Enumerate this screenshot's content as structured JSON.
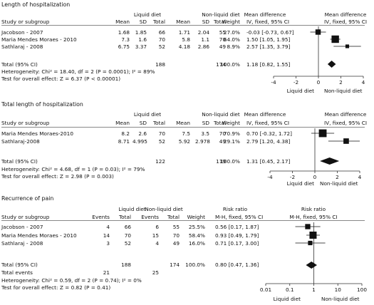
{
  "chart_data": [
    {
      "type": "forest",
      "title": "Length of hospitalization",
      "header": {
        "study": "Study or subgroup",
        "group1": "Liquid diet",
        "group2": "Non-liquid diet",
        "mean": "Mean",
        "sd": "SD",
        "total": "Total",
        "weight": "Weight",
        "effect_label": "Mean difference",
        "effect_method": "IV, fixed, 95% CI"
      },
      "studies": [
        {
          "name": "Jacobson - 2007",
          "m1": "1.68",
          "sd1": "1.85",
          "n1": "66",
          "m2": "1.71",
          "sd2": "2.04",
          "n2": "55",
          "weight": "27.0%",
          "ci_text": "-0.03 [-0.73, 0.67]",
          "est": -0.03,
          "lo": -0.73,
          "hi": 0.67,
          "w": 27.0
        },
        {
          "name": "Maria Mendes Moraes - 2010",
          "m1": "7.3",
          "sd1": "1.6",
          "n1": "70",
          "m2": "5.8",
          "sd2": "1.1",
          "n2": "70",
          "weight": "64.0%",
          "ci_text": "1.50 [1.05, 1.95]",
          "est": 1.5,
          "lo": 1.05,
          "hi": 1.95,
          "w": 64.0
        },
        {
          "name": "Sathlaraj - 2008",
          "m1": "6.75",
          "sd1": "3.37",
          "n1": "52",
          "m2": "4.18",
          "sd2": "2.86",
          "n2": "49",
          "weight": "8.9%",
          "ci_text": "2.57 [1.35, 3.79]",
          "est": 2.57,
          "lo": 1.35,
          "hi": 3.79,
          "w": 8.9
        }
      ],
      "total": {
        "label": "Total (95% CI)",
        "n1": "188",
        "n2": "174",
        "weight": "100.0%",
        "ci_text": "1.18 [0.82, 1.55]",
        "est": 1.18,
        "lo": 0.82,
        "hi": 1.55
      },
      "heterogeneity": "Heterogeneity: Chi² = 18.40, df = 2 (P = 0.0001); I² = 89%",
      "overall": "Test for overall effect: Z = 6.37 (P < 0.00001)",
      "axis": {
        "scale": "linear",
        "min": -4,
        "max": 4,
        "ticks": [
          "-4",
          "-2",
          "0",
          "2",
          "4"
        ],
        "tick_values": [
          -4,
          -2,
          0,
          2,
          4
        ]
      },
      "favours_left": "Liquid diet",
      "favours_right": "Non-liquid diet"
    },
    {
      "type": "forest",
      "title": "Total length of hospitalization",
      "header": {
        "study": "Study or subgroup",
        "group1": "Liquid diet",
        "group2": "Non-liquid diet",
        "mean": "Mean",
        "sd": "SD",
        "total": "Total",
        "weight": "Weight",
        "effect_label": "Mean difference",
        "effect_method": "IV, fixed, 95% CI"
      },
      "studies": [
        {
          "name": "Maria Mendes Moraes-2010",
          "m1": "8.2",
          "sd1": "2.6",
          "n1": "70",
          "m2": "7.5",
          "sd2": "3.5",
          "n2": "70",
          "weight": "70.9%",
          "ci_text": "0.70 [-0.32, 1.72]",
          "est": 0.7,
          "lo": -0.32,
          "hi": 1.72,
          "w": 70.9
        },
        {
          "name": "Sathlaraj-2008",
          "m1": "8.71",
          "sd1": "4.995",
          "n1": "52",
          "m2": "5.92",
          "sd2": "2.978",
          "n2": "49",
          "weight": "29.1%",
          "ci_text": "2.79 [1.20, 4.38]",
          "est": 2.79,
          "lo": 1.2,
          "hi": 4.38,
          "w": 29.1
        }
      ],
      "total": {
        "label": "Total (95% CI)",
        "n1": "122",
        "n2": "119",
        "weight": "100.0%",
        "ci_text": "1.31 [0.45, 2.17]",
        "est": 1.31,
        "lo": 0.45,
        "hi": 2.17
      },
      "heterogeneity": "Heterogeneity: Chi² = 4.68, df = 1 (P = 0.03); I² = 79%",
      "overall": "Test for overall effect: Z = 2.98 (P = 0.003)",
      "axis": {
        "scale": "linear",
        "min": -4,
        "max": 4,
        "ticks": [
          "-4",
          "-2",
          "0",
          "2",
          "4"
        ],
        "tick_values": [
          -4,
          -2,
          0,
          2,
          4
        ]
      },
      "favours_left": "Liquid diet",
      "favours_right": "Non-liquid diet"
    },
    {
      "type": "forest",
      "title": "Recurrence of pain",
      "header": {
        "study": "Study or subgroup",
        "group1": "Liquid diet",
        "group2": "Non-liquid diet",
        "events": "Events",
        "total": "Total",
        "weight": "Weight",
        "effect_label": "Risk ratio",
        "effect_method": "M-H, fixed, 95% CI"
      },
      "studies": [
        {
          "name": "Jacobson - 2007",
          "e1": "4",
          "n1": "66",
          "e2": "6",
          "n2": "55",
          "weight": "25.5%",
          "ci_text": "0.56 [0.17, 1.87]",
          "est": 0.56,
          "lo": 0.17,
          "hi": 1.87,
          "w": 25.5
        },
        {
          "name": "Maria Mendes Moraes - 2010",
          "e1": "14",
          "n1": "70",
          "e2": "15",
          "n2": "70",
          "weight": "58.4%",
          "ci_text": "0.93 [0.49, 1.79]",
          "est": 0.93,
          "lo": 0.49,
          "hi": 1.79,
          "w": 58.4
        },
        {
          "name": "Sathlaraj - 2008",
          "e1": "3",
          "n1": "52",
          "e2": "4",
          "n2": "49",
          "weight": "16.0%",
          "ci_text": "0.71 [0.17, 3.00]",
          "est": 0.71,
          "lo": 0.17,
          "hi": 3.0,
          "w": 16.0
        }
      ],
      "total": {
        "label": "Total (95% CI)",
        "n1": "188",
        "n2": "174",
        "weight": "100.0%",
        "ci_text": "0.80 [0.47, 1.36]",
        "est": 0.8,
        "lo": 0.47,
        "hi": 1.36
      },
      "total_events": {
        "label": "Total events",
        "e1": "21",
        "e2": "25"
      },
      "heterogeneity": "Heterogeneity: Chi² = 0.59, df = 2 (P = 0.74); I² = 0%",
      "overall": "Test for overall effect: Z = 0.82 (P = 0.41)",
      "axis": {
        "scale": "log",
        "min": 0.01,
        "max": 100,
        "ticks": [
          "0.01",
          "0.1",
          "1",
          "10",
          "100"
        ],
        "tick_values": [
          0.01,
          0.1,
          1,
          10,
          100
        ]
      },
      "favours_left": "Liquid diet",
      "favours_right": "Non-liquid diet"
    }
  ]
}
